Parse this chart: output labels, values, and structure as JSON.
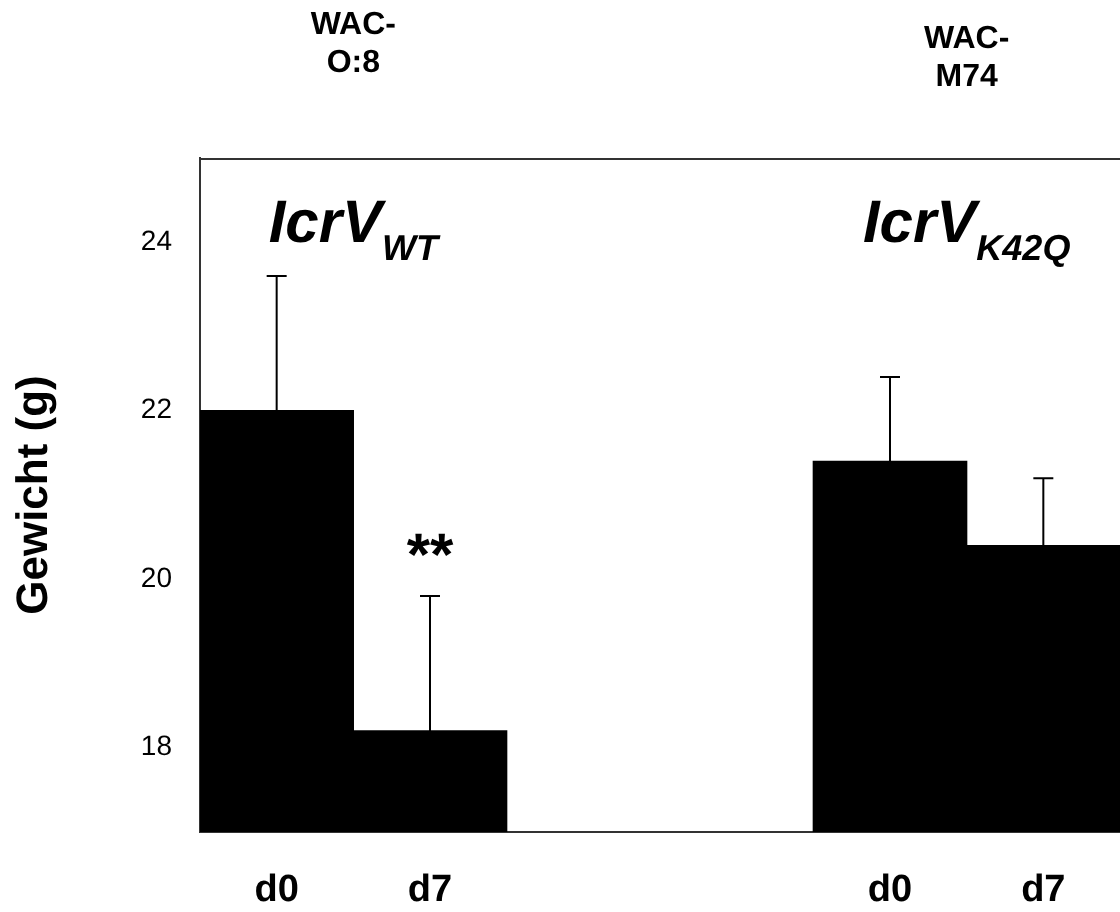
{
  "chart_data": {
    "type": "bar",
    "ylabel": "Gewicht (g)",
    "categories": [
      "d0",
      "d7",
      null,
      null,
      "d0",
      "d7"
    ],
    "values": [
      22.0,
      18.2,
      null,
      null,
      21.4,
      20.4
    ],
    "errors": [
      [
        22.0,
        23.6
      ],
      [
        18.2,
        19.8
      ],
      null,
      null,
      [
        21.4,
        22.4
      ],
      [
        20.4,
        21.2
      ]
    ],
    "color": "#000000",
    "ylim": [
      17,
      25
    ],
    "yticks": [
      18,
      20,
      22,
      24
    ],
    "grid": false,
    "legend": false,
    "annotations": [
      "WAC-\nO:8",
      "WAC-\nM74",
      "IcrV$_{WT}$",
      "IcrV$_{K42Q}$",
      "**"
    ]
  }
}
